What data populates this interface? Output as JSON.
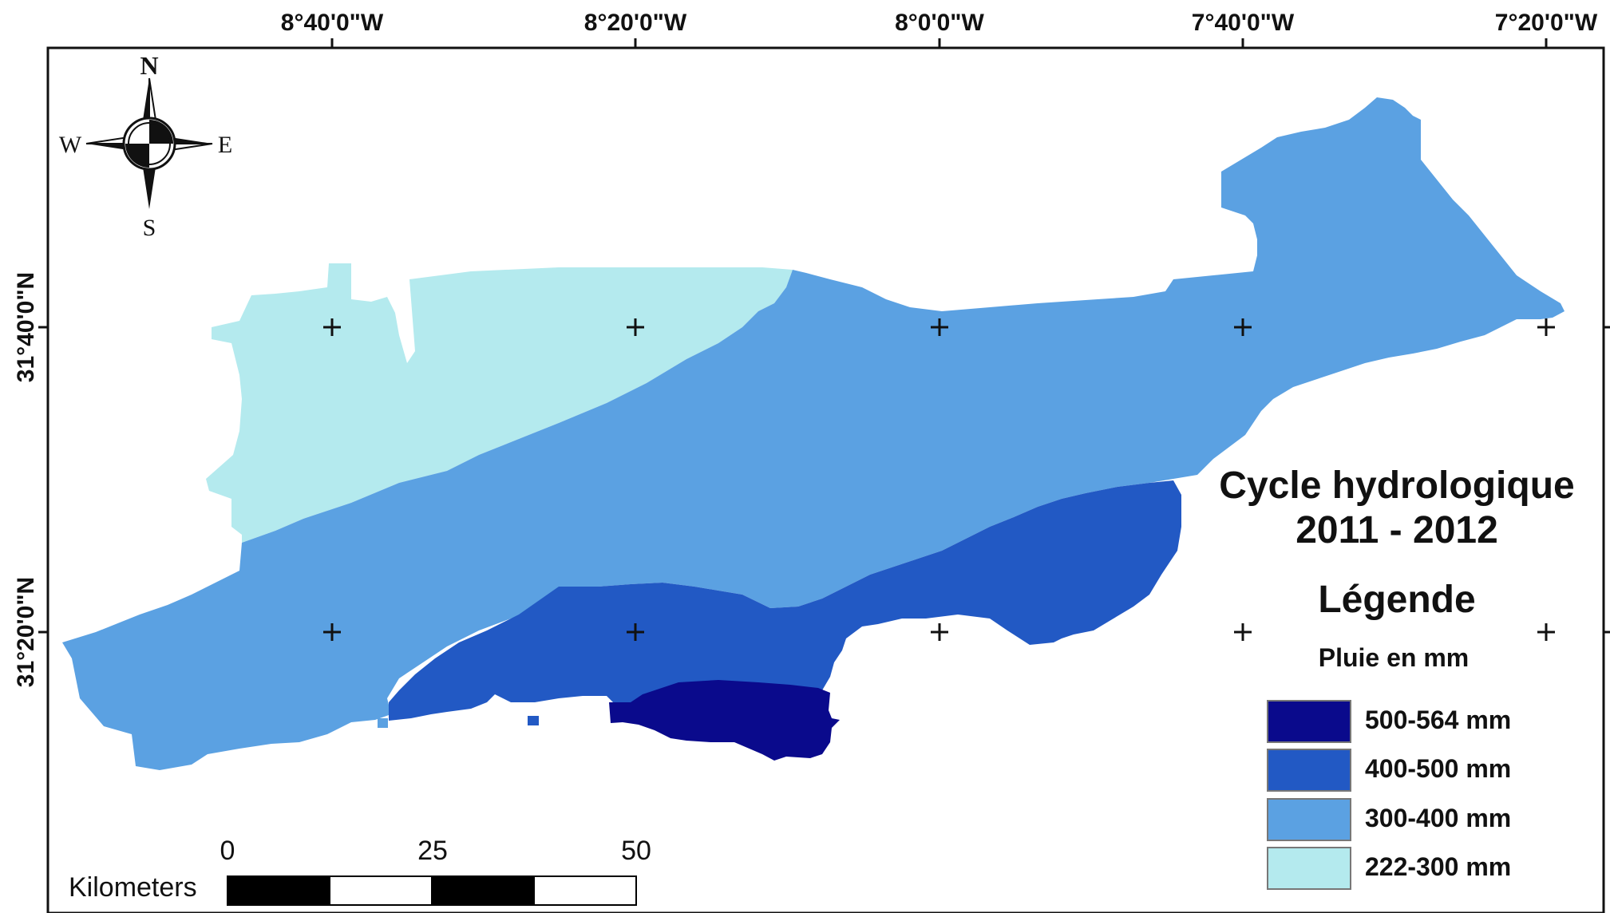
{
  "map": {
    "title_line1": "Cycle hydrologique",
    "title_line2": "2011 - 2012",
    "legend_title": "Légende",
    "legend_subtitle": "Pluie en mm",
    "legend": [
      {
        "label": "500-564 mm",
        "color": "#0a0a8c"
      },
      {
        "label": "400-500 mm",
        "color": "#2259c4"
      },
      {
        "label": "300-400 mm",
        "color": "#5ba1e2"
      },
      {
        "label": "222-300 mm",
        "color": "#b4eaee"
      }
    ],
    "graticule": {
      "longitudes": [
        "8°40'0\"W",
        "8°20'0\"W",
        "8°0'0\"W",
        "7°40'0\"W",
        "7°20'0\"W"
      ],
      "latitudes": [
        "31°40'0\"N",
        "31°20'0\"N"
      ]
    },
    "north_arrow": {
      "n": "N",
      "s": "S",
      "e": "E",
      "w": "W"
    },
    "scale_bar": {
      "unit": "Kilometers",
      "ticks": [
        "0",
        "25",
        "50"
      ]
    }
  }
}
